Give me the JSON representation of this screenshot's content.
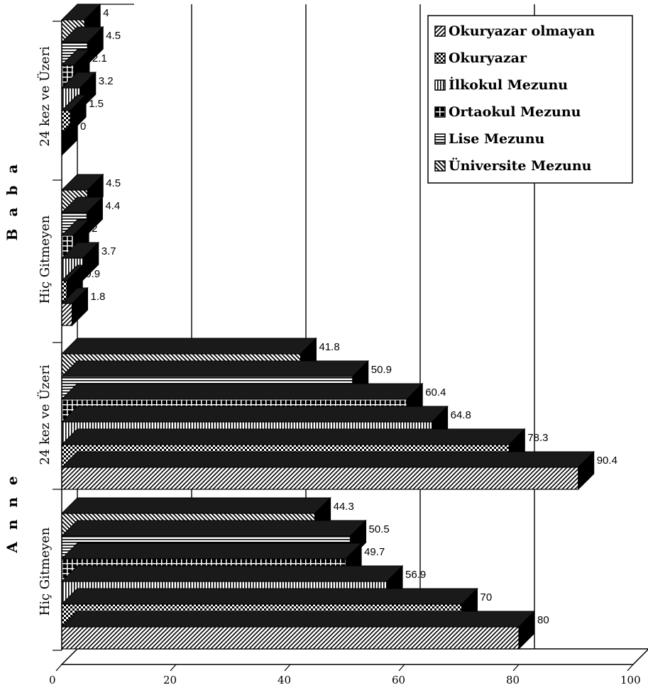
{
  "chart_data": {
    "type": "bar",
    "orientation": "horizontal",
    "xlim": [
      0,
      100
    ],
    "x_ticks": [
      "0",
      "20",
      "40",
      "60",
      "80",
      "100"
    ],
    "grid": true,
    "legend_position": "top-right",
    "series": [
      {
        "name": "Okuryazar olmayan",
        "pattern": "diag-fwd"
      },
      {
        "name": "Okuryazar",
        "pattern": "checker"
      },
      {
        "name": "İlkokul Mezunu",
        "pattern": "vlines"
      },
      {
        "name": "Ortaokul Mezunu",
        "pattern": "grid"
      },
      {
        "name": "Lise Mezunu",
        "pattern": "hlines"
      },
      {
        "name": "Üniversite Mezunu",
        "pattern": "diag-back"
      }
    ],
    "groups": [
      {
        "name": "Baba",
        "categories": [
          {
            "name": "24 kez ve Üzeri",
            "values": [
              0,
              1.5,
              3.2,
              2.1,
              4.5,
              4
            ],
            "labels": [
              "0",
              "1.5",
              "3.2",
              "2.1",
              "4.5",
              "4"
            ]
          },
          {
            "name": "Hiç Gitmeyen",
            "values": [
              1.8,
              0.9,
              3.7,
              2,
              4.4,
              4.5
            ],
            "labels": [
              "1.8",
              "0.9",
              "3.7",
              "2",
              "4.4",
              "4.5"
            ]
          }
        ]
      },
      {
        "name": "Anne",
        "categories": [
          {
            "name": "24 kez ve Üzeri",
            "values": [
              90.4,
              78.3,
              64.8,
              60.4,
              50.9,
              41.8
            ],
            "labels": [
              "90.4",
              "78.3",
              "64.8",
              "60.4",
              "50.9",
              "41.8"
            ]
          },
          {
            "name": "Hiç Gitmeyen",
            "values": [
              80,
              70,
              56.9,
              49.7,
              50.5,
              44.3
            ],
            "labels": [
              "80",
              "70",
              "56.9",
              "49.7",
              "50.5",
              "44.3"
            ]
          }
        ]
      }
    ],
    "group_labels": [
      "B a b a",
      "A n n e"
    ]
  }
}
